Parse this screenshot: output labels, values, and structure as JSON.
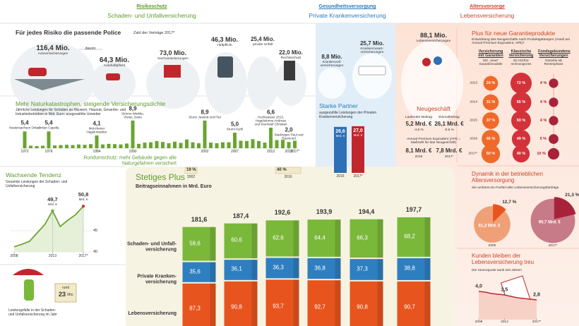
{
  "header": {
    "sections": [
      {
        "title": "Risikoschutz",
        "subtitle": "Schaden- und Unfallversicherung"
      },
      {
        "title": "Gesundheitsversorgung",
        "subtitle": "Private Krankenversicherung"
      },
      {
        "title": "Altersvorsorge",
        "subtitle": "Lebensversicherung"
      }
    ]
  },
  "policies": {
    "title": "Für jedes Risiko die passende Police",
    "note": "Zahl der Verträge 2017*",
    "connector": "davon",
    "items": [
      {
        "value": "116,4 Mio.",
        "label": "Autoversicherungen"
      },
      {
        "value": "64,3 Mio.",
        "label": "Autohaftpflicht"
      },
      {
        "value": "73,0 Mio.",
        "label": "Sachversicherungen"
      },
      {
        "value": "46,3 Mio.",
        "label": "Haftpflicht"
      },
      {
        "value": "25,4 Mio.",
        "label": "private Unfall"
      },
      {
        "value": "22,0 Mio.",
        "label": "Rechtsschutz"
      },
      {
        "value": "8,8 Mio.",
        "label": "Kranken­voll­versicherungen"
      },
      {
        "value": "25,7 Mio.",
        "label": "Kranken­zusatz­versicherungen"
      },
      {
        "value": "88,1 Mio.",
        "label": "Lebensversicherungen"
      }
    ]
  },
  "nature": {
    "title": "Mehr Naturkatastrophen, steigende Versicherungsdichte",
    "subtitle": "Jährliche Leistungen für Schäden an Häusern, Hausrat, Gewerbe- und Industriebetrieben in Mrd. Euro; ausgewählte Unwetter",
    "color": "#6aa530",
    "x": [
      1972,
      1973,
      1974,
      1975,
      1976,
      1977,
      1978,
      1979,
      1980,
      1981,
      1982,
      1983,
      1984,
      1985,
      1986,
      1987,
      1988,
      1989,
      1990,
      1991,
      1992,
      1993,
      1994,
      1995,
      1996,
      1997,
      1998,
      1999,
      2000,
      2001,
      2002,
      2003,
      2004,
      2005,
      2006,
      2007,
      2008,
      2009,
      2010,
      2011,
      2012,
      2013,
      2014,
      2015,
      2016,
      2017
    ],
    "values": [
      5.4,
      0.8,
      0.7,
      0.8,
      5.4,
      0.9,
      1.0,
      1.1,
      1.0,
      1.2,
      1.1,
      1.3,
      4.1,
      1.2,
      1.4,
      1.3,
      1.2,
      1.5,
      8.9,
      1.4,
      1.8,
      1.9,
      2.3,
      2.0,
      1.6,
      2.1,
      1.7,
      2.8,
      1.9,
      1.6,
      8.9,
      1.8,
      1.6,
      1.9,
      1.9,
      5.0,
      2.4,
      2.3,
      2.9,
      2.3,
      1.8,
      6.6,
      2.6,
      2.7,
      2.0,
      2.4
    ],
    "xticks": [
      1972,
      1976,
      1984,
      1990,
      2002,
      2007,
      2013,
      2016,
      {
        "value": 2017,
        "label": "2017*"
      }
    ],
    "annotations": [
      {
        "x": 1972,
        "value_label": "5,4",
        "label": "Niedersachsen Orkan"
      },
      {
        "x": 1976,
        "value_label": "5,4",
        "label": "Orkan Capella"
      },
      {
        "x": 1984,
        "value_label": "4,1",
        "label": "Münchener Hagelunwetter"
      },
      {
        "x": 1990,
        "value_label": "8,9",
        "label": "Stürme Wiebke, Vivian, Daria"
      },
      {
        "x": 2002,
        "value_label": "8,9",
        "label": "Sturm Jeanett und Flut"
      },
      {
        "x": 2007,
        "value_label": "5,0",
        "label": "Sturm Kyrill"
      },
      {
        "x": 2013,
        "value_label": "6,6",
        "label": "Hochwasser 2013, Hagelstürme Andreas und Sturmtief Christian"
      },
      {
        "x": 2016,
        "value_label": "2,0",
        "label": "Starkregen Paul und Raumund"
      }
    ]
  },
  "coverage": {
    "title": "Rundumschutz: mehr Gebäude gegen alle Naturgefahren versichert",
    "categories": [
      "2002",
      "2016"
    ],
    "values": [
      19,
      40
    ],
    "value_labels": [
      "19 %",
      "40 %"
    ]
  },
  "trend": {
    "title": "Wachsende Tendenz",
    "subtitle": "Gesamte Leistungen der Schaden- und Unfallversicherung",
    "x": [
      2008,
      2009,
      2010,
      2011,
      2012,
      2013,
      2014,
      2015,
      2016,
      2017
    ],
    "values": [
      41.2,
      41.8,
      42.5,
      44.5,
      46.5,
      49.7,
      46.0,
      47.5,
      48.8,
      50.8
    ],
    "value_labels": [
      null,
      null,
      null,
      null,
      null,
      "49,7",
      null,
      null,
      null,
      "50,8"
    ],
    "unit": "Mrd. €",
    "color": "#6aa530",
    "ylim": [
      40,
      52
    ],
    "yticks": [
      40,
      45
    ],
    "xticks": [
      2008,
      2013,
      {
        "value": 2017,
        "label": "2017*"
      }
    ]
  },
  "claims": {
    "prefix": "rund",
    "value": "23",
    "unit": "Mio.",
    "caption": "Leistungsfälle in der Schaden- und Unfallversicherung im Jahr"
  },
  "health": {
    "title": "Starke Partner",
    "subtitle": "ausgezahlte Leistungen der Privaten Krankenversicherung",
    "categories": [
      "2016",
      "2017*"
    ],
    "values": [
      26.6,
      27.0
    ],
    "value_labels": [
      "26,6",
      "27,0"
    ],
    "unit": "Mrd. €",
    "colors": [
      "#2e6fb5",
      "#c0272d"
    ]
  },
  "premiums": {
    "title": "Stetiges Plus",
    "subtitle": "Beitragseinnahmen in Mrd. Euro",
    "total_labels": [
      "181,6",
      "187,4",
      "192,6",
      "193,9",
      "194,4",
      "197,7"
    ],
    "series": [
      {
        "name": "Lebens­versicherung",
        "color": "#e8541e",
        "values": [
          87.3,
          90.8,
          93.7,
          92.7,
          90.8,
          90.7
        ],
        "value_labels": [
          "87,3",
          "90,8",
          "93,7",
          "92,7",
          "90,8",
          "90,7"
        ]
      },
      {
        "name": "Private Kranken­versicherung",
        "color": "#2e7fc0",
        "values": [
          35.6,
          36.1,
          36.3,
          36.8,
          37.3,
          38.8
        ],
        "value_labels": [
          "35,6",
          "36,1",
          "36,3",
          "36,8",
          "37,3",
          "38,8"
        ]
      },
      {
        "name": "Schaden- und Unfall­versicherung",
        "color": "#7ab83a",
        "values": [
          58.6,
          60.6,
          62.6,
          64.4,
          66.3,
          68.2
        ],
        "value_labels": [
          "58,6",
          "60,6",
          "62,6",
          "64,4",
          "66,3",
          "68,2"
        ]
      }
    ]
  },
  "guarantee": {
    "title": "Plus für neue Garantieprodukte",
    "subtitle": "Entwicklung des Neugeschäfts nach Produktgattungen (Anteil am Annual Premium Equivalent, APE)*",
    "columns": [
      {
        "name": "Versicherung mit Garantien",
        "note": "inkl. „neue“ Garantiemodelle",
        "color": "#ef6a2a"
      },
      {
        "name": "Klassische Versicherung",
        "note": "mit Höchst­rechnungszins",
        "color": "#d4323a"
      },
      {
        "name": "Fondsgebundene Versicherungen",
        "note": "Garantie als Rentenphase",
        "color": "#a8233a"
      }
    ],
    "rows": [
      {
        "year": "2013",
        "values": [
          24,
          72,
          4
        ],
        "value_labels": [
          "24 %",
          "72 %",
          "4 %"
        ]
      },
      {
        "year": "2014",
        "values": [
          31,
          65,
          4
        ],
        "value_labels": [
          "31 %",
          "65 %",
          "4 %"
        ]
      },
      {
        "year": "2015",
        "values": [
          37,
          59,
          4
        ],
        "value_labels": [
          "37 %",
          "59 %",
          "4 %"
        ]
      },
      {
        "year": "2016",
        "values": [
          46,
          49,
          5
        ],
        "value_labels": [
          "46 %",
          "49 %",
          "5 %"
        ]
      },
      {
        "year": "2017*",
        "values": [
          50,
          40,
          10
        ],
        "value_labels": [
          "50 %",
          "40 %",
          "10 %"
        ]
      }
    ]
  },
  "new_business": {
    "title": "Neugeschäft",
    "items": [
      {
        "label": "Laufender Beitrag",
        "value": "5,2 Mrd. €",
        "change": "-4,6 %"
      },
      {
        "label": "Einmalbeitrag",
        "value": "26,1 Mrd. €",
        "change": "-0,5 %"
      }
    ],
    "ape": {
      "label": "Annual Premium Equivalent (APE = Maßzahl für das Neugeschäft)",
      "values": [
        {
          "value": "8,1 Mrd. €",
          "year": "2016"
        },
        {
          "value": "7,8 Mrd. €",
          "year": "2017*"
        }
      ]
    }
  },
  "pension": {
    "type": "pie",
    "title": "Dynamik in der betrieblichen Altersversorgung",
    "subtitle": "Sie umfasst ein Fünftel aller Lebensversicherungsbeiträge",
    "pies": [
      {
        "year": "2000",
        "share": 12.7,
        "share_label": "12,7 %",
        "total": 61.2,
        "total_label": "61,2 Mrd. €",
        "colors": [
          "#f0a077",
          "#e8541e"
        ]
      },
      {
        "year": "2017*",
        "share": 21.3,
        "share_label": "21,3 %",
        "total": 90.7,
        "total_label": "90,7 Mrd. €",
        "colors": [
          "#c77a88",
          "#a8233a"
        ]
      }
    ]
  },
  "lapse": {
    "title": "Kunden bleiben der Lebensversicherung treu",
    "subtitle": "Die Stornoquote sank seit Jahren",
    "x": [
      2008,
      2009,
      2010,
      2011,
      2012,
      2013,
      2014,
      2015,
      2016,
      2017
    ],
    "values": [
      4.0,
      3.9,
      3.7,
      3.6,
      3.5,
      3.3,
      3.1,
      3.0,
      2.9,
      2.8
    ],
    "value_labels": [
      "4,0",
      null,
      null,
      null,
      "3,5",
      null,
      null,
      null,
      null,
      "2,8"
    ],
    "color": "#c0272d",
    "xticks": [
      2008,
      2012,
      {
        "value": 2017,
        "label": "2017*"
      }
    ]
  }
}
